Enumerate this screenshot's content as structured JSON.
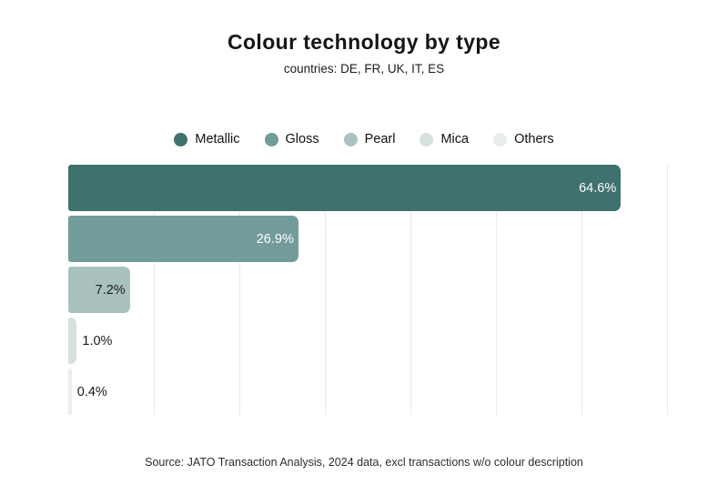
{
  "title": "Colour technology by type",
  "subtitle": "countries: DE, FR, UK, IT, ES",
  "source": "Source: JATO Transaction Analysis, 2024 data, excl transactions w/o colour description",
  "colors": {
    "background": "#ffffff",
    "gridline": "#e9e9e9",
    "title_text": "#151515",
    "label_dark": "#1a1a1a",
    "label_light": "#ffffff"
  },
  "chart_data": {
    "type": "bar",
    "orientation": "horizontal",
    "title": "Colour technology by type",
    "subtitle": "countries: DE, FR, UK, IT, ES",
    "categories": [
      "Metallic",
      "Gloss",
      "Pearl",
      "Mica",
      "Others"
    ],
    "values": [
      64.6,
      26.9,
      7.2,
      1.0,
      0.4
    ],
    "value_labels": [
      "64.6%",
      "26.9%",
      "7.2%",
      "1.0%",
      "0.4%"
    ],
    "bar_colors": [
      "#3f716e",
      "#719c99",
      "#a9c2bf",
      "#d6e0dd",
      "#e9edeb"
    ],
    "label_placement": [
      "inside",
      "inside",
      "inside",
      "outside",
      "outside"
    ],
    "label_colors": [
      "#ffffff",
      "#ffffff",
      "#1a1a1a",
      "#1a1a1a",
      "#1a1a1a"
    ],
    "xlabel": "",
    "ylabel": "",
    "xlim": [
      0,
      75
    ],
    "gridline_step": 10,
    "grid": true,
    "legend_position": "top",
    "legend_entries": [
      "Metallic",
      "Gloss",
      "Pearl",
      "Mica",
      "Others"
    ]
  }
}
